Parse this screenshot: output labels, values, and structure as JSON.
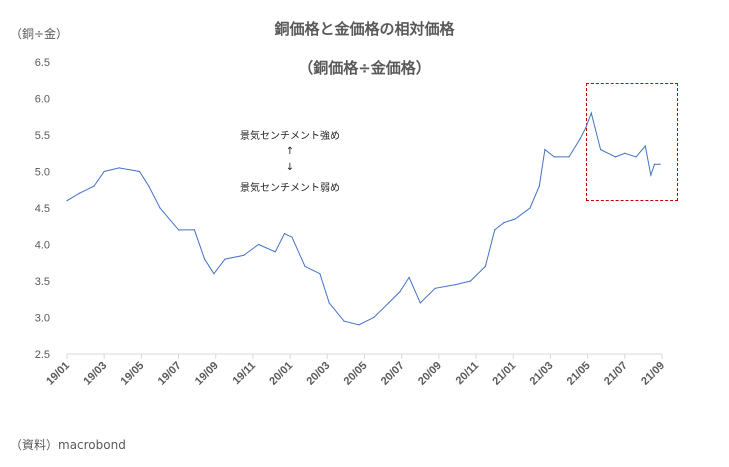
{
  "chart_data": {
    "type": "line",
    "title": "銅価格と金価格の相対価格",
    "subtitle": "（銅価格÷金価格）",
    "ylabel": "（銅÷金）",
    "xlabel": "",
    "ylim": [
      2.5,
      6.5
    ],
    "yticks": [
      "2.5",
      "3.0",
      "3.5",
      "4.0",
      "4.5",
      "5.0",
      "5.5",
      "6.0",
      "6.5"
    ],
    "xticks": [
      "19/01",
      "19/03",
      "19/05",
      "19/07",
      "19/09",
      "19/11",
      "20/01",
      "20/03",
      "20/05",
      "20/07",
      "20/09",
      "20/11",
      "21/01",
      "21/03",
      "21/05",
      "21/07",
      "21/09"
    ],
    "x_unit": "months since 19/01",
    "grid": false,
    "series": [
      {
        "name": "銅価格÷金価格",
        "color": "#4472c4",
        "x": [
          0,
          0.65,
          1.45,
          2,
          2.8,
          3.9,
          4.4,
          5,
          6,
          6.85,
          7.4,
          7.9,
          8.5,
          9.5,
          10.3,
          11.2,
          11.7,
          12.1,
          12.8,
          13.6,
          14.1,
          14.9,
          15.7,
          16.5,
          17.3,
          17.9,
          18.4,
          19,
          19.8,
          20.9,
          21.7,
          22.5,
          23,
          23.5,
          24.1,
          24.9,
          25.4,
          25.7,
          26.2,
          27,
          27.6,
          27.9,
          28.2,
          28.7,
          29.5,
          30,
          30.6,
          31.1,
          31.4,
          31.6,
          31.9
        ],
        "values": [
          4.6,
          4.7,
          4.8,
          5.0,
          5.05,
          5.0,
          4.8,
          4.5,
          4.2,
          4.2,
          3.8,
          3.6,
          3.8,
          3.85,
          4.0,
          3.9,
          4.15,
          4.1,
          3.7,
          3.6,
          3.2,
          2.95,
          2.9,
          3.0,
          3.2,
          3.35,
          3.55,
          3.2,
          3.4,
          3.45,
          3.5,
          3.7,
          4.2,
          4.3,
          4.35,
          4.5,
          4.8,
          5.3,
          5.2,
          5.2,
          5.45,
          5.6,
          5.8,
          5.3,
          5.2,
          5.25,
          5.2,
          5.35,
          4.95,
          5.1,
          5.1
        ]
      }
    ],
    "annotations": {
      "up": "景気センチメント強め",
      "arrow_up": "↑",
      "arrow_down": "↓",
      "down": "景気センチメント弱め"
    },
    "source": "（資料）macrobond"
  }
}
